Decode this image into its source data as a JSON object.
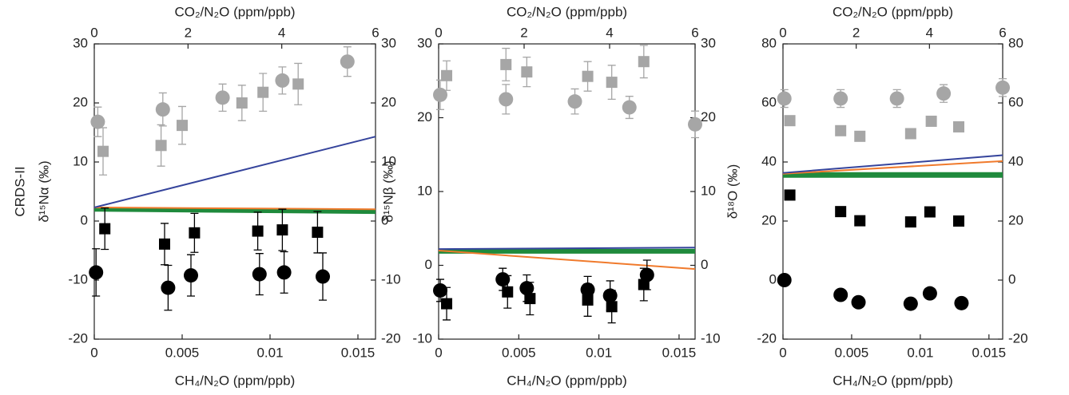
{
  "chart_data": [
    {
      "type": "scatter",
      "row_label": "CRDS-II",
      "x2label": "CO₂/N₂O (ppm/ppb)",
      "xlabel": "CH₄/N₂O (ppm/ppb)",
      "ylabel": "δ¹⁵Nα (‰)",
      "xlim": [
        0,
        0.016
      ],
      "xticks": [
        0,
        0.005,
        0.01,
        0.015
      ],
      "x2lim": [
        0,
        6
      ],
      "x2ticks": [
        0,
        2,
        4,
        6
      ],
      "ylim": [
        -20,
        30
      ],
      "yticks": [
        -20,
        -10,
        0,
        10,
        20,
        30
      ],
      "y2lim": [
        -20,
        30
      ],
      "y2ticks": [
        -20,
        -10,
        0,
        10,
        20,
        30
      ],
      "series": [
        {
          "marker": "line",
          "color": "#1f8a3c",
          "linewidth": 6,
          "x": [
            0,
            0.016
          ],
          "values": [
            2.0,
            1.6
          ]
        },
        {
          "marker": "line",
          "color": "#f07a2c",
          "linewidth": 2,
          "x": [
            0,
            0.016
          ],
          "values": [
            2.3,
            2.0
          ]
        },
        {
          "marker": "line",
          "color": "#35449c",
          "linewidth": 2,
          "x": [
            0,
            0.016
          ],
          "values": [
            2.3,
            14.3
          ]
        },
        {
          "marker": "circle",
          "color": "#a6a6a6",
          "x": [
            0.0002,
            0.0039,
            0.0073,
            0.0107,
            0.0144
          ],
          "values": [
            16.8,
            18.9,
            20.9,
            23.8,
            27.0
          ],
          "errors": [
            2.5,
            2.8,
            2.3,
            2.3,
            2.5
          ]
        },
        {
          "marker": "square",
          "color": "#a6a6a6",
          "x": [
            0.0005,
            0.0038,
            0.005,
            0.0084,
            0.0096,
            0.0116
          ],
          "values": [
            11.8,
            12.8,
            16.2,
            20.0,
            21.8,
            23.2
          ],
          "errors": [
            4,
            3.5,
            3.2,
            3,
            3.2,
            3.5
          ]
        },
        {
          "marker": "circle",
          "color": "#000000",
          "x": [
            0.0001,
            0.0042,
            0.0055,
            0.0094,
            0.0108,
            0.013
          ],
          "values": [
            -8.7,
            -11.3,
            -9.2,
            -9.0,
            -8.7,
            -9.4
          ],
          "errors": [
            4,
            3.8,
            3.5,
            3.5,
            3.5,
            4
          ]
        },
        {
          "marker": "square",
          "color": "#000000",
          "x": [
            0.0006,
            0.004,
            0.0057,
            0.0093,
            0.0107,
            0.0127
          ],
          "values": [
            -1.3,
            -3.9,
            -2.0,
            -1.7,
            -1.5,
            -1.9
          ],
          "errors": [
            3.5,
            3.5,
            3.3,
            3.2,
            3.5,
            3.5
          ]
        }
      ]
    },
    {
      "type": "scatter",
      "x2label": "CO₂/N₂O (ppm/ppb)",
      "xlabel": "CH₄/N₂O (ppm/ppb)",
      "ylabel": "δ¹⁵Nβ (‰)",
      "xlim": [
        0,
        0.016
      ],
      "xticks": [
        0,
        0.005,
        0.01,
        0.015
      ],
      "x2lim": [
        0,
        6
      ],
      "x2ticks": [
        0,
        2,
        4,
        6
      ],
      "ylim": [
        -10,
        30
      ],
      "yticks": [
        -10,
        0,
        10,
        20,
        30
      ],
      "y2lim": [
        -10,
        30
      ],
      "y2ticks": [
        -10,
        0,
        10,
        20,
        30
      ],
      "series": [
        {
          "marker": "line",
          "color": "#1f8a3c",
          "linewidth": 6,
          "x": [
            0,
            0.016
          ],
          "values": [
            1.9,
            1.9
          ]
        },
        {
          "marker": "line",
          "color": "#35449c",
          "linewidth": 2,
          "x": [
            0,
            0.016
          ],
          "values": [
            2.2,
            2.4
          ]
        },
        {
          "marker": "line",
          "color": "#f07a2c",
          "linewidth": 2,
          "x": [
            0,
            0.016
          ],
          "values": [
            2.0,
            -0.5
          ]
        },
        {
          "marker": "circle",
          "color": "#a6a6a6",
          "x": [
            0.0001,
            0.0042,
            0.0085,
            0.0119,
            0.016
          ],
          "values": [
            23.1,
            22.5,
            22.2,
            21.4,
            19.1
          ],
          "errors": [
            2,
            2,
            1.7,
            1.5,
            1.8
          ]
        },
        {
          "marker": "square",
          "color": "#a6a6a6",
          "x": [
            0.0005,
            0.0042,
            0.0055,
            0.0093,
            0.0108,
            0.0128
          ],
          "values": [
            25.7,
            27.2,
            26.2,
            25.6,
            24.8,
            27.6
          ],
          "errors": [
            2,
            2.2,
            2,
            2,
            2.3,
            2.2
          ]
        },
        {
          "marker": "circle",
          "color": "#000000",
          "x": [
            0.0001,
            0.004,
            0.0055,
            0.0093,
            0.0107,
            0.013
          ],
          "values": [
            -3.4,
            -1.9,
            -3.1,
            -3.3,
            -4.1,
            -1.3
          ],
          "errors": [
            1.5,
            1.5,
            1.8,
            1.8,
            2,
            2
          ]
        },
        {
          "marker": "square",
          "color": "#000000",
          "x": [
            0.0005,
            0.0043,
            0.0057,
            0.0093,
            0.0108,
            0.0128
          ],
          "values": [
            -5.2,
            -3.6,
            -4.5,
            -4.7,
            -5.6,
            -2.6
          ],
          "errors": [
            2.2,
            2.2,
            2.2,
            2.2,
            2.2,
            2.2
          ]
        }
      ]
    },
    {
      "type": "scatter",
      "x2label": "CO₂/N₂O (ppm/ppb)",
      "xlabel": "CH₄/N₂O (ppm/ppb)",
      "ylabel": "δ¹⁸O (‰)",
      "xlim": [
        0,
        0.016
      ],
      "xticks": [
        0,
        0.005,
        0.01,
        0.015
      ],
      "x2lim": [
        0,
        6
      ],
      "x2ticks": [
        0,
        2,
        4,
        6
      ],
      "ylim": [
        -20,
        80
      ],
      "yticks": [
        -20,
        0,
        20,
        40,
        60,
        80
      ],
      "y2lim": [
        -20,
        80
      ],
      "y2ticks": [
        -20,
        0,
        20,
        40,
        60,
        80
      ],
      "series": [
        {
          "marker": "line",
          "color": "#1f8a3c",
          "linewidth": 7,
          "x": [
            0,
            0.016
          ],
          "values": [
            35.6,
            35.6
          ]
        },
        {
          "marker": "line",
          "color": "#f07a2c",
          "linewidth": 2,
          "x": [
            0,
            0.016
          ],
          "values": [
            36.0,
            40.3
          ]
        },
        {
          "marker": "line",
          "color": "#35449c",
          "linewidth": 2,
          "x": [
            0,
            0.016
          ],
          "values": [
            36.3,
            42.3
          ]
        },
        {
          "marker": "circle",
          "color": "#a6a6a6",
          "x": [
            0.0001,
            0.0042,
            0.0083,
            0.0117,
            0.016
          ],
          "values": [
            61.5,
            61.5,
            61.5,
            63.2,
            65.2
          ],
          "errors": [
            3,
            3,
            3,
            3,
            3
          ]
        },
        {
          "marker": "square",
          "color": "#a6a6a6",
          "x": [
            0.0005,
            0.0042,
            0.0056,
            0.0093,
            0.0108,
            0.0128
          ],
          "values": [
            54.0,
            50.6,
            48.7,
            49.6,
            53.8,
            51.9
          ],
          "errors": [
            1.5,
            1.5,
            1.5,
            1.5,
            1.5,
            1.5
          ]
        },
        {
          "marker": "circle",
          "color": "#000000",
          "x": [
            0.0001,
            0.0042,
            0.0055,
            0.0093,
            0.0107,
            0.013
          ],
          "values": [
            0,
            -5.0,
            -7.5,
            -8.0,
            -4.5,
            -7.8
          ],
          "errors": [
            1.5,
            1.5,
            1.5,
            1.5,
            1.5,
            1.5
          ]
        },
        {
          "marker": "square",
          "color": "#000000",
          "x": [
            0.0005,
            0.0042,
            0.0056,
            0.0093,
            0.0107,
            0.0128
          ],
          "values": [
            28.8,
            23.2,
            20.1,
            19.7,
            23.1,
            20.0
          ],
          "errors": [
            1.5,
            1.5,
            1.5,
            1.5,
            1.5,
            1.5
          ]
        }
      ]
    }
  ]
}
